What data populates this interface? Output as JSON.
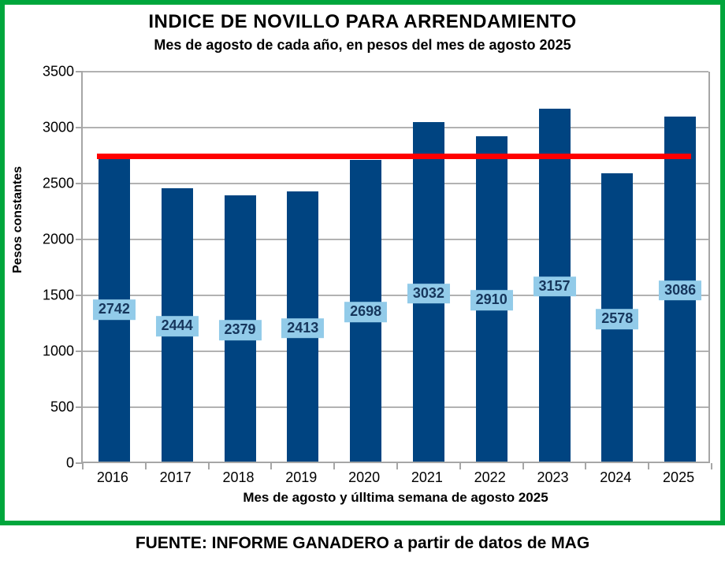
{
  "chart_data": {
    "type": "bar",
    "title": "INDICE DE NOVILLO PARA ARRENDAMIENTO",
    "subtitle": "Mes de agosto de cada año, en pesos del mes de agosto 2025",
    "categories": [
      "2016",
      "2017",
      "2018",
      "2019",
      "2020",
      "2021",
      "2022",
      "2023",
      "2024",
      "2025"
    ],
    "values": [
      2742,
      2444,
      2379,
      2413,
      2698,
      3032,
      2910,
      3157,
      2578,
      3086
    ],
    "data_labels": "center",
    "reference_line": {
      "value": 2742
    },
    "xlabel": "Mes de agosto y úlltima semana de agosto 2025",
    "ylabel": "Pesos constantes",
    "ylim": [
      0,
      3500
    ],
    "yticks": [
      0,
      500,
      1000,
      1500,
      2000,
      2500,
      3000,
      3500
    ],
    "grid": true,
    "legend": "none"
  },
  "source": {
    "text": "FUENTE: INFORME GANADERO a partir de datos de MAG"
  },
  "colors": {
    "bar": "#004481",
    "data_label_bg": "#92CBE9",
    "data_label_text": "#16365C",
    "reference_line": "#FF0000",
    "frame_border": "#00A63C",
    "gridline": "#B2B2B2",
    "text": "#000000"
  }
}
